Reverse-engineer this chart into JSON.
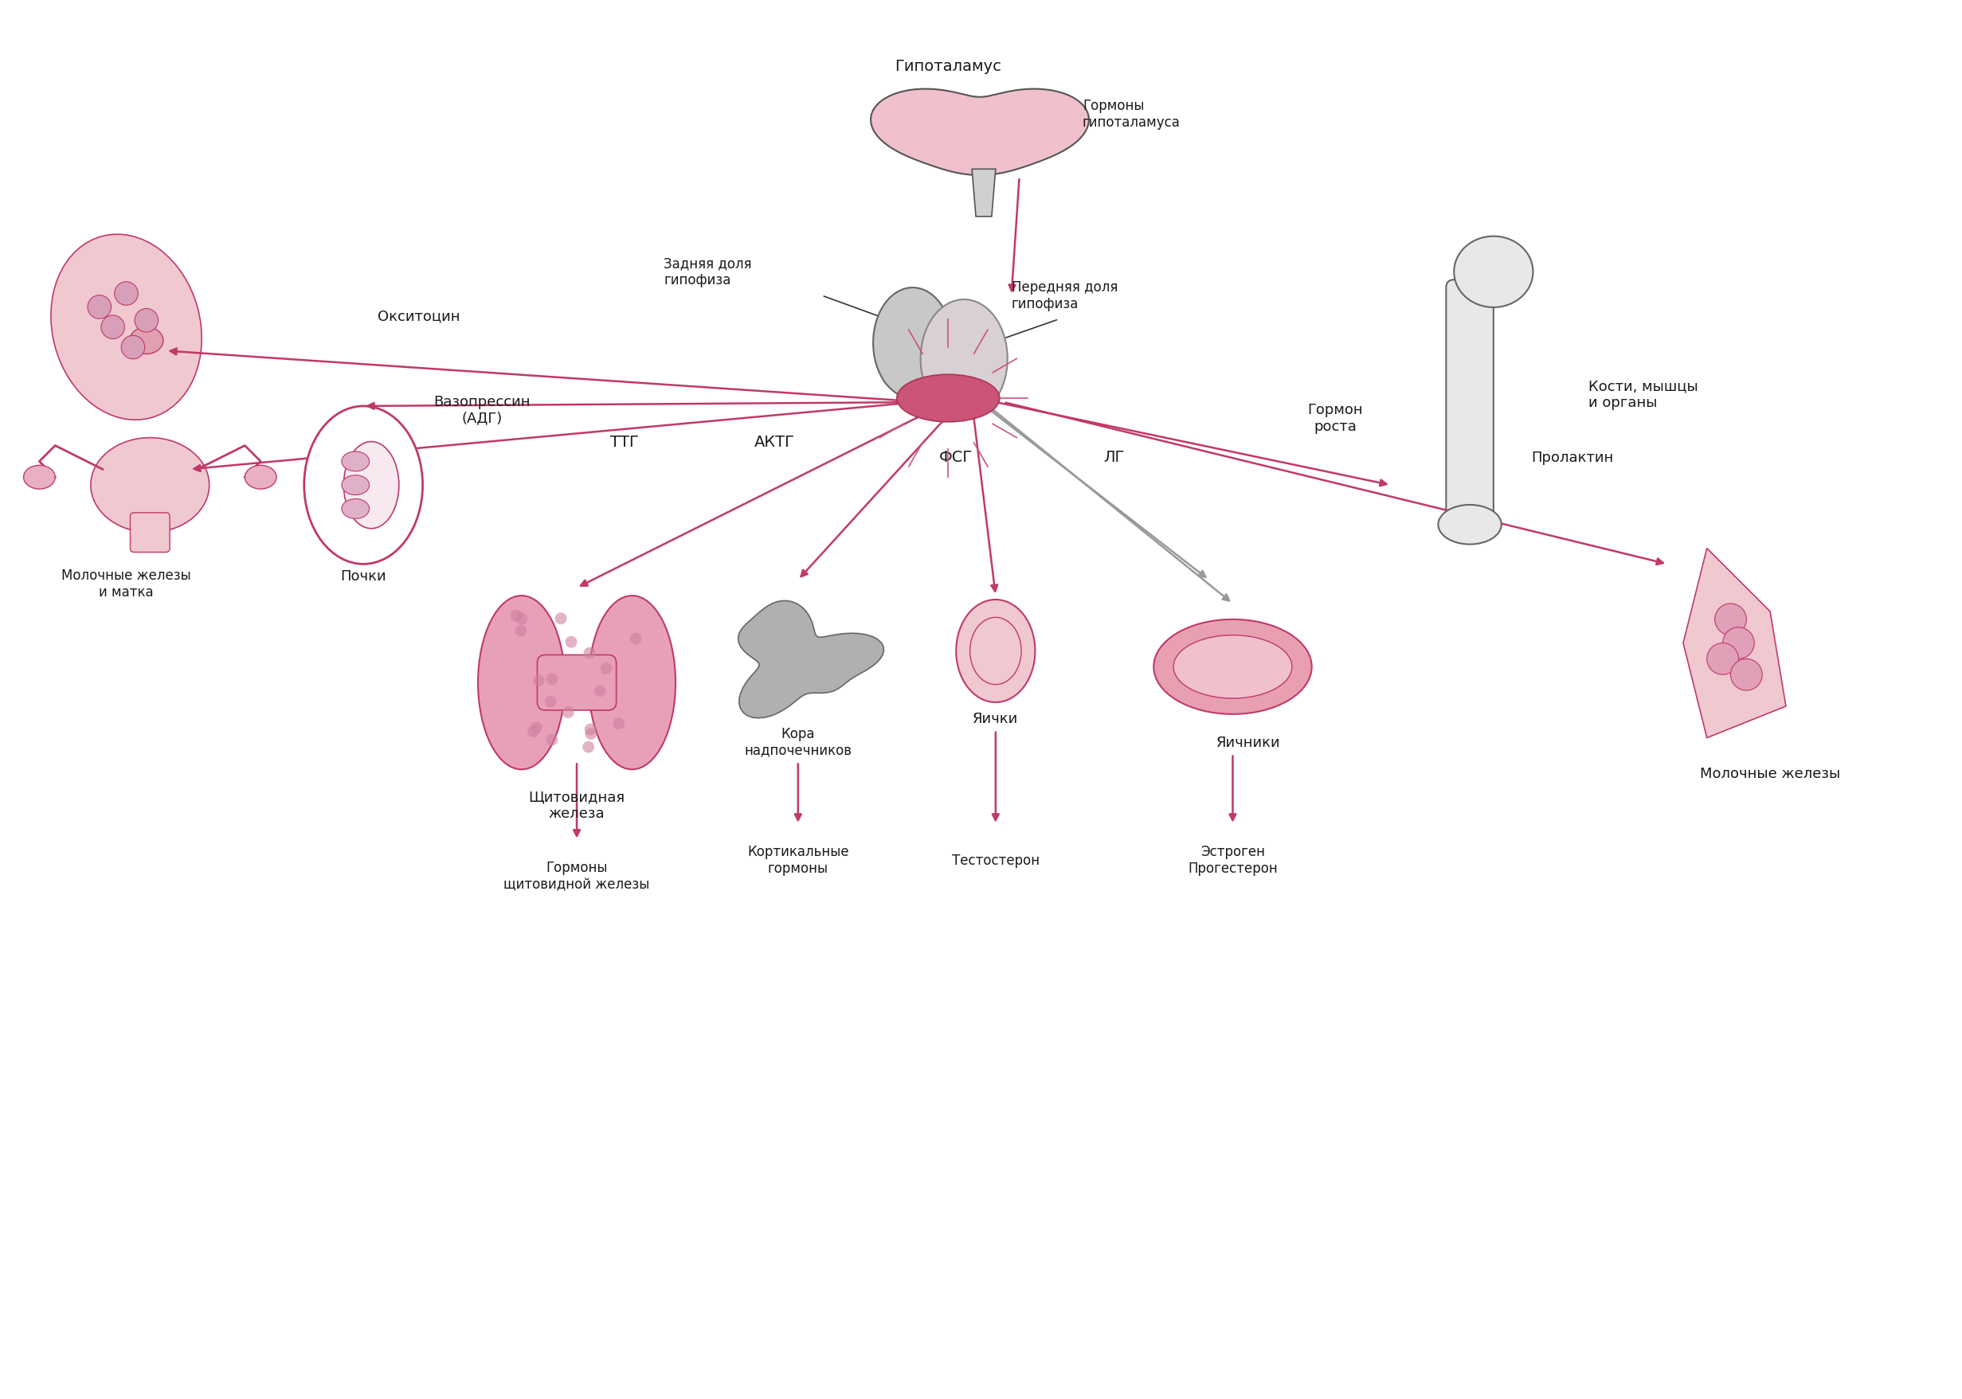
{
  "bg_color": "#ffffff",
  "arrow_color_pink": "#c0396a",
  "arrow_color_gray": "#999999",
  "organ_fill_pink": "#e8a0b0",
  "organ_fill_light": "#f0c8d0",
  "organ_stroke": "#c0396a",
  "text_color": "#1a1a1a",
  "labels": {
    "hypothalamus": "Гипоталамус",
    "hypothalamus_hormones": "Гормоны\nгипоталамуса",
    "posterior_pituitary": "Задняя доля\nгипофиза",
    "anterior_pituitary": "Передняя доля\nгипофиза",
    "oxytocin": "Окситоцин",
    "vasopressin": "Вазопрессин\n(АДГ)",
    "tsh": "ТТГ",
    "acth": "АКТГ",
    "fsh": "ФСГ",
    "lh": "ЛГ",
    "growth_hormone": "Гормон\nроста",
    "prolactin": "Пролактин",
    "mammary_uterus": "Молочные железы\nи матка",
    "kidneys": "Почки",
    "thyroid": "Щитовидная\nжелеза",
    "adrenal_cortex": "Кора\nнадпочечников",
    "testes": "Яички",
    "ovaries": "Яичники",
    "bones": "Кости, мышцы\nи органы",
    "mammary": "Молочные железы",
    "thyroid_hormones": "Гормоны\nщитовидной железы",
    "cortical_hormones": "Кортикальные\nгормоны",
    "testosterone": "Тестостерон",
    "estrogen_progesterone": "Эстроген\nПрогестерон"
  }
}
